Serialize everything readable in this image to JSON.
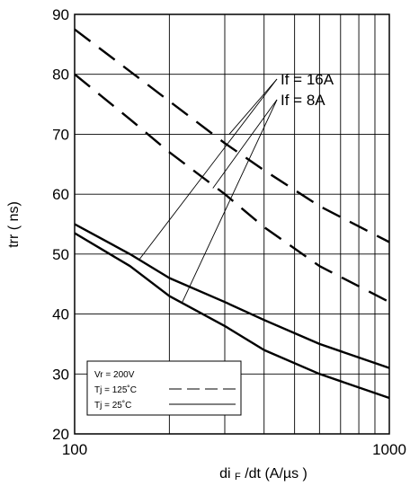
{
  "chart_data": {
    "type": "line",
    "xlabel_main": "di",
    "xlabel_sub": "F",
    "xlabel_rest": " /dt  (A/µs )",
    "ylabel": "trr  ( ns)",
    "x_scale": "log",
    "xlim": [
      100,
      1000
    ],
    "ylim": [
      20,
      90
    ],
    "grid": true,
    "x_tick_labels": [
      "100",
      "1000"
    ],
    "y_ticks": [
      20,
      30,
      40,
      50,
      60,
      70,
      80,
      90
    ],
    "y_tick_labels": [
      "20",
      "30",
      "40",
      "50",
      "60",
      "70",
      "80",
      "90"
    ],
    "series": [
      {
        "style": "dashed",
        "condition": "If = 16A, Tj = 125°C",
        "x": [
          100,
          150,
          200,
          300,
          400,
          600,
          1000
        ],
        "y": [
          87.5,
          80.5,
          75.5,
          68.5,
          64,
          58,
          52
        ]
      },
      {
        "style": "dashed",
        "condition": "If = 8A, Tj = 125°C",
        "x": [
          100,
          150,
          200,
          300,
          400,
          600,
          1000
        ],
        "y": [
          80,
          72.5,
          67,
          60,
          54.5,
          48,
          42
        ]
      },
      {
        "style": "solid",
        "condition": "If = 16A, Tj = 25°C",
        "x": [
          100,
          150,
          200,
          300,
          400,
          600,
          1000
        ],
        "y": [
          55,
          50,
          46,
          42,
          39,
          35,
          31
        ]
      },
      {
        "style": "solid",
        "condition": "If = 8A, Tj = 25°C",
        "x": [
          100,
          150,
          200,
          300,
          400,
          600,
          1000
        ],
        "y": [
          53.5,
          48,
          43,
          38,
          34,
          30,
          26
        ]
      }
    ],
    "annotations": [
      {
        "text": "If = 16A",
        "targets": [
          [
            310,
            70
          ],
          [
            160,
            49
          ]
        ]
      },
      {
        "text": "If = 8A",
        "targets": [
          [
            275,
            61
          ],
          [
            220,
            42
          ]
        ]
      }
    ],
    "legend": {
      "placement": "bottom-left",
      "lines": [
        "Vr = 200V",
        "Tj = 125˚C",
        "Tj =  25˚C"
      ]
    }
  }
}
